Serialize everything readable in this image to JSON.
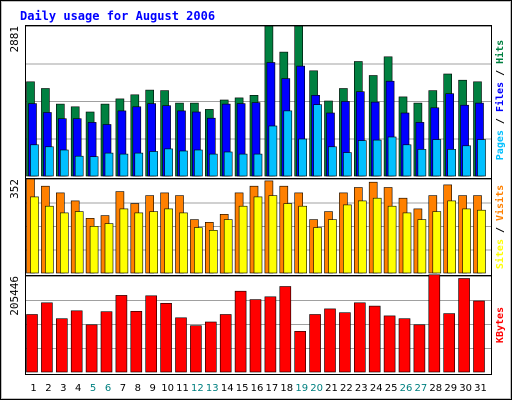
{
  "chart_data": {
    "type": "bar",
    "title": "Daily usage for August 2006",
    "categories": [
      "1",
      "2",
      "3",
      "4",
      "5",
      "6",
      "7",
      "8",
      "9",
      "10",
      "11",
      "12",
      "13",
      "14",
      "15",
      "16",
      "17",
      "18",
      "19",
      "20",
      "21",
      "22",
      "23",
      "24",
      "25",
      "26",
      "27",
      "28",
      "29",
      "30",
      "31"
    ],
    "weekend_days": [
      "5",
      "6",
      "12",
      "13",
      "19",
      "20",
      "26",
      "27"
    ],
    "panels": [
      {
        "name": "hits-files-pages",
        "ymax_label": "2881",
        "ylim": [
          0,
          2881
        ],
        "legend": [
          "Pages",
          "Files",
          "Hits"
        ],
        "series": [
          {
            "name": "Hits",
            "color": "#008040",
            "values": [
              1810,
              1680,
              1380,
              1330,
              1230,
              1380,
              1480,
              1560,
              1650,
              1640,
              1400,
              1400,
              1280,
              1460,
              1500,
              1550,
              2880,
              2380,
              2880,
              2020,
              1440,
              1680,
              2200,
              1930,
              2290,
              1520,
              1400,
              1640,
              1960,
              1840,
              1810
            ]
          },
          {
            "name": "Files",
            "color": "#0000ff",
            "values": [
              1390,
              1220,
              1100,
              1100,
              1030,
              990,
              1250,
              1330,
              1390,
              1350,
              1250,
              1230,
              1110,
              1380,
              1390,
              1410,
              2180,
              1870,
              2110,
              1550,
              1210,
              1430,
              1620,
              1420,
              1820,
              1210,
              1030,
              1310,
              1580,
              1360,
              1400
            ]
          },
          {
            "name": "Pages",
            "color": "#00c0ff",
            "values": [
              600,
              560,
              500,
              380,
              370,
              440,
              420,
              440,
              470,
              520,
              480,
              500,
              420,
              460,
              420,
              420,
              960,
              1250,
              710,
              1370,
              560,
              450,
              680,
              690,
              750,
              600,
              510,
              700,
              510,
              580,
              700
            ]
          }
        ]
      },
      {
        "name": "visits-sites",
        "ymax_label": "352",
        "ylim": [
          0,
          352
        ],
        "legend": [
          "Sites",
          "Visits"
        ],
        "series": [
          {
            "name": "Visits",
            "color": "#ff8000",
            "values": [
              352,
              325,
              300,
              270,
              205,
              215,
              305,
              260,
              290,
              300,
              290,
              200,
              190,
              220,
              300,
              325,
              345,
              325,
              300,
              200,
              230,
              300,
              320,
              340,
              320,
              280,
              240,
              290,
              330,
              290,
              290
            ]
          },
          {
            "name": "Sites",
            "color": "#ffff00",
            "values": [
              285,
              250,
              225,
              230,
              175,
              185,
              240,
              225,
              230,
              240,
              225,
              170,
              160,
              200,
              250,
              285,
              290,
              260,
              250,
              170,
              200,
              255,
              270,
              280,
              250,
              225,
              200,
              230,
              270,
              240,
              235
            ]
          }
        ]
      },
      {
        "name": "kbytes",
        "ymax_label": "205446",
        "ylim": [
          0,
          205446
        ],
        "legend": [
          "KBytes"
        ],
        "series": [
          {
            "name": "KBytes",
            "color": "#ff0000",
            "values": [
              123000,
              148000,
              114000,
              131000,
              101000,
              129000,
              164000,
              130000,
              163000,
              147000,
              116000,
              99000,
              107000,
              123000,
              173000,
              155000,
              161000,
              183000,
              87000,
              123000,
              135000,
              127000,
              148000,
              141000,
              120000,
              114000,
              101000,
              208000,
              125000,
              200000,
              152000
            ]
          }
        ]
      }
    ]
  }
}
